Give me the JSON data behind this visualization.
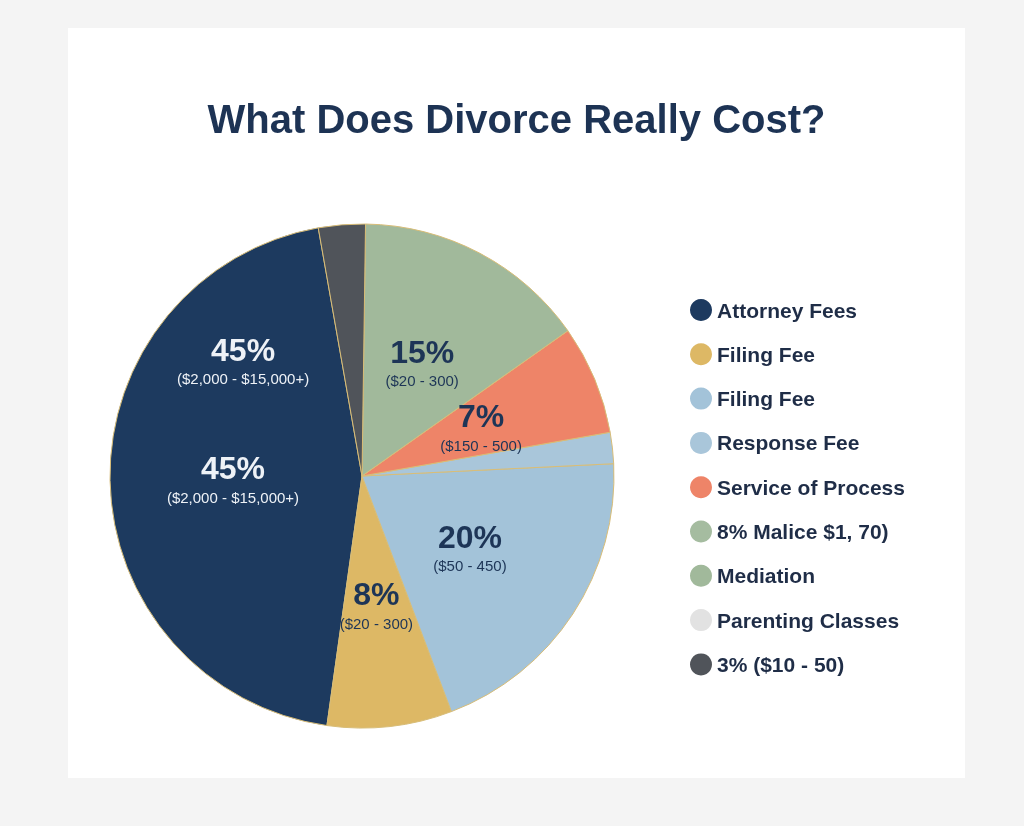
{
  "chart_data": {
    "type": "pie",
    "title": "What Does Divorce Really Cost?",
    "categories": [
      "Attorney Fees",
      "Filing Fee",
      "Filing Fee",
      "Response Fee",
      "Service of Process",
      "8% Malice $1, 70)",
      "Mediation",
      "Parenting Classes",
      "3% ($10 - 50)"
    ],
    "values": [
      45,
      8,
      20,
      2,
      7,
      null,
      15,
      null,
      3
    ],
    "colors": [
      "#1d3a5f",
      "#ddb865",
      "#a3c3d9",
      "#a9c6da",
      "#ee8468",
      "#a5bca0",
      "#a1b99b",
      "#e2e2e2",
      "#50545a"
    ],
    "value_labels": [
      "45%\n($2,000 - $15,000+)",
      "8%\n($20 - 300)",
      "20%\n($50 - 450)",
      null,
      "7%\n($150 - 500)",
      null,
      "15%\n($20 - 300)",
      null,
      null
    ],
    "annotations": [
      {
        "text": "45%\n($2,000 - $15,000+)",
        "x": "Attorney Fees"
      }
    ],
    "legend": "right"
  }
}
